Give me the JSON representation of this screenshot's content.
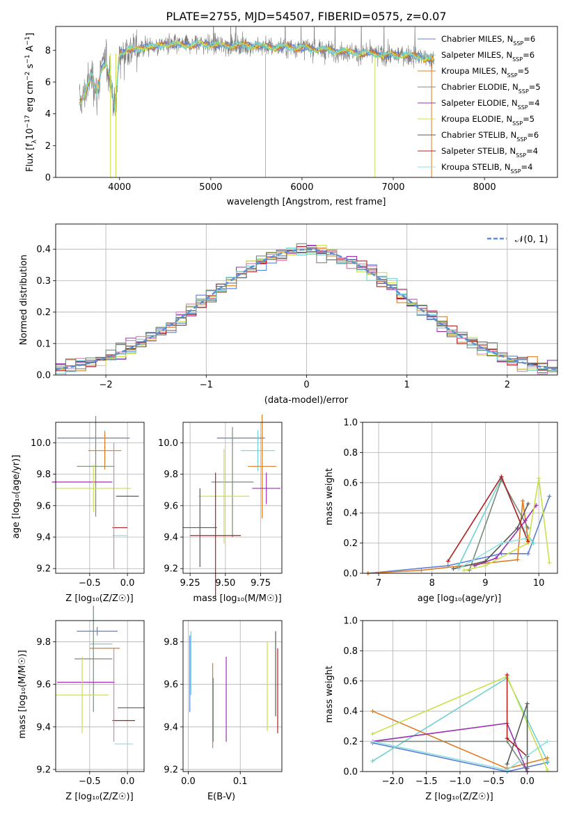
{
  "figure": {
    "title": "PLATE=2755, MJD=54507, FIBERID=0575, z=0.07"
  },
  "colors": {
    "series": [
      "#5a7fd6",
      "#6fd0d0",
      "#e07b22",
      "#7a8a7a",
      "#9a2fb0",
      "#c9e04a",
      "#5a5a5a",
      "#b01f1f",
      "#8fe0e0"
    ],
    "pink": "#e37eb3",
    "green": "#7bd96b",
    "grey": "#888888"
  },
  "chart_data": [
    {
      "id": "spectrum",
      "type": "line",
      "xlabel": "wavelength [Angstrom, rest frame]",
      "ylabel": "Flux [f$_\\lambda$10$^{-17}$ erg cm$^{-2}$ s$^{-1}$ A$^{-1}$]",
      "ylabel_parts": [
        "Flux [f",
        "λ",
        "10",
        "−17",
        " erg cm",
        "−2",
        " s",
        "−1",
        " A",
        "−1",
        "]"
      ],
      "xlim": [
        3300,
        8800
      ],
      "ylim": [
        0,
        9.5
      ],
      "xticks": [
        4000,
        5000,
        6000,
        7000,
        8000
      ],
      "yticks": [
        0,
        2,
        4,
        6,
        8
      ],
      "continuum": {
        "x": [
          3560,
          3600,
          3650,
          3700,
          3750,
          3800,
          3850,
          3900,
          3950,
          4000,
          4100,
          4200,
          4300,
          4400,
          4500,
          4700,
          4900,
          5100,
          5300,
          5500,
          5700,
          5900,
          6100,
          6300,
          6500,
          6700,
          6900,
          7100,
          7300,
          7500,
          7700,
          7900,
          8100,
          8300,
          8500,
          8700
        ],
        "y": [
          4.7,
          5.0,
          5.8,
          6.5,
          5.2,
          6.8,
          7.3,
          6.2,
          4.2,
          7.8,
          8.1,
          8.0,
          8.3,
          8.2,
          8.4,
          8.3,
          8.4,
          8.3,
          8.3,
          8.3,
          8.2,
          8.2,
          8.1,
          8.0,
          7.9,
          7.8,
          7.7,
          7.7,
          7.6,
          7.2,
          7.3,
          7.1,
          7.0,
          6.8,
          6.5,
          6.2
        ]
      },
      "legend": [
        {
          "name": "Chabrier MILES, N",
          "sub": "SSP",
          "tail": "=6"
        },
        {
          "name": "Salpeter MILES, N",
          "sub": "SSP",
          "tail": "=6"
        },
        {
          "name": "Kroupa MILES, N",
          "sub": "SSP",
          "tail": "=5"
        },
        {
          "name": "Chabrier ELODIE, N",
          "sub": "SSP",
          "tail": "=5"
        },
        {
          "name": "Salpeter ELODIE, N",
          "sub": "SSP",
          "tail": "=4"
        },
        {
          "name": "Kroupa ELODIE, N",
          "sub": "SSP",
          "tail": "=5"
        },
        {
          "name": "Chabrier STELIB, N",
          "sub": "SSP",
          "tail": "=6"
        },
        {
          "name": "Salpeter STELIB, N",
          "sub": "SSP",
          "tail": "=4"
        },
        {
          "name": "Kroupa STELIB, N",
          "sub": "SSP",
          "tail": "=4"
        }
      ]
    },
    {
      "id": "residual-histogram",
      "type": "bar",
      "xlabel": "(data-model)/error",
      "ylabel": "Normed distribution",
      "xlim": [
        -2.5,
        2.5
      ],
      "ylim": [
        0,
        0.48
      ],
      "xticks": [
        -2,
        -1,
        0,
        1,
        2
      ],
      "xtick_labels": [
        "−2",
        "−1",
        "0",
        "1",
        "2"
      ],
      "yticks": [
        0.0,
        0.1,
        0.2,
        0.3,
        0.4
      ],
      "bin_width": 0.1,
      "legend": [
        {
          "name": "𝒩(0, 1)"
        }
      ]
    },
    {
      "id": "age-vs-Z",
      "type": "scatter",
      "xlabel": "Z [log₁₀(Z/Z☉)]",
      "ylabel": "age  [log₁₀(age/yr)]",
      "xlim": [
        -0.95,
        0.22
      ],
      "ylim": [
        9.17,
        10.13
      ],
      "xticks": [
        -0.5,
        0.0
      ],
      "xtick_labels": [
        "−0.5",
        "0.0"
      ],
      "yticks": [
        9.2,
        9.4,
        9.6,
        9.8,
        10.0
      ],
      "points": [
        {
          "x": -0.45,
          "y": 10.03,
          "xerr": 0.48,
          "yerr": 0.0
        },
        {
          "x": -0.3,
          "y": 9.98,
          "xerr": 0.0,
          "yerr": 0.1
        },
        {
          "x": -0.3,
          "y": 9.95,
          "xerr": 0.22,
          "yerr": 0.12
        },
        {
          "x": -0.42,
          "y": 9.85,
          "xerr": 0.25,
          "yerr": 0.32
        },
        {
          "x": -0.6,
          "y": 9.75,
          "xerr": 0.4,
          "yerr": 0.0
        },
        {
          "x": -0.45,
          "y": 9.71,
          "xerr": 0.5,
          "yerr": 0.15
        },
        {
          "x": 0.0,
          "y": 9.66,
          "xerr": 0.15,
          "yerr": 0.0
        },
        {
          "x": -0.1,
          "y": 9.46,
          "xerr": 0.1,
          "yerr": 0.0
        },
        {
          "x": -0.1,
          "y": 9.41,
          "xerr": 0.1,
          "yerr": 0.0
        },
        {
          "x": -0.18,
          "y": 9.6,
          "xerr": 0.0,
          "yerr": 0.4
        }
      ]
    },
    {
      "id": "age-vs-mass",
      "type": "scatter",
      "xlabel": "mass [log₁₀(M/M☉)]",
      "ylabel": "",
      "xlim": [
        9.2,
        9.9
      ],
      "ylim": [
        9.17,
        10.13
      ],
      "xticks": [
        9.25,
        9.5,
        9.75
      ],
      "yticks": [
        9.2,
        9.4,
        9.6,
        9.8,
        10.0
      ],
      "points": [
        {
          "x": 9.61,
          "y": 10.03,
          "xerr": 0.17,
          "yerr": 0.0
        },
        {
          "x": 9.73,
          "y": 9.95,
          "xerr": 0.12,
          "yerr": 0.13
        },
        {
          "x": 9.76,
          "y": 9.85,
          "xerr": 0.1,
          "yerr": 0.33
        },
        {
          "x": 9.55,
          "y": 9.75,
          "xerr": 0.15,
          "yerr": 0.35
        },
        {
          "x": 9.79,
          "y": 9.71,
          "xerr": 0.1,
          "yerr": 0.1
        },
        {
          "x": 9.49,
          "y": 9.66,
          "xerr": 0.18,
          "yerr": 0.3
        },
        {
          "x": 9.32,
          "y": 9.46,
          "xerr": 0.12,
          "yerr": 0.25
        },
        {
          "x": 9.43,
          "y": 9.41,
          "xerr": 0.18,
          "yerr": 0.4
        }
      ]
    },
    {
      "id": "mass-weight-vs-age",
      "type": "line",
      "xlabel": "age  [log₁₀(age/yr)]",
      "ylabel": "mass weight",
      "xlim": [
        6.7,
        10.35
      ],
      "ylim": [
        0,
        1.0
      ],
      "xticks": [
        7,
        8,
        9,
        10
      ],
      "yticks": [
        0.0,
        0.2,
        0.4,
        0.6,
        0.8,
        1.0
      ],
      "series": [
        {
          "x": [
            6.8,
            8.3,
            9.3,
            9.8,
            10.2
          ],
          "y": [
            0.0,
            0.05,
            0.13,
            0.13,
            0.51
          ]
        },
        {
          "x": [
            8.5,
            9.3,
            9.7,
            9.9
          ],
          "y": [
            0.05,
            0.63,
            0.3,
            0.2
          ]
        },
        {
          "x": [
            6.8,
            7.8,
            9.6,
            9.7,
            9.8
          ],
          "y": [
            0.0,
            0.02,
            0.09,
            0.48,
            0.22
          ]
        },
        {
          "x": [
            8.7,
            9.3,
            9.8
          ],
          "y": [
            0.02,
            0.62,
            0.3
          ]
        },
        {
          "x": [
            8.8,
            9.2,
            9.75,
            9.95
          ],
          "y": [
            0.05,
            0.1,
            0.35,
            0.45
          ]
        },
        {
          "x": [
            8.6,
            9.0,
            9.8,
            10.0,
            10.2
          ],
          "y": [
            0.02,
            0.05,
            0.2,
            0.63,
            0.07
          ]
        },
        {
          "x": [
            8.4,
            9.0,
            9.6,
            9.8
          ],
          "y": [
            0.03,
            0.08,
            0.3,
            0.46
          ]
        },
        {
          "x": [
            8.3,
            9.3,
            9.8
          ],
          "y": [
            0.08,
            0.64,
            0.21
          ]
        },
        {
          "x": [
            8.5,
            9.3,
            9.75
          ],
          "y": [
            0.03,
            0.2,
            0.23
          ]
        }
      ]
    },
    {
      "id": "mass-vs-Z",
      "type": "scatter",
      "xlabel": "Z [log₁₀(Z/Z☉)]",
      "ylabel": "mass [log₁₀(M/M☉)]",
      "xlim": [
        -0.95,
        0.22
      ],
      "ylim": [
        9.19,
        9.9
      ],
      "xticks": [
        -0.5,
        0.0
      ],
      "xtick_labels": [
        "−0.5",
        "0.0"
      ],
      "yticks": [
        9.2,
        9.4,
        9.6,
        9.8
      ],
      "points": [
        {
          "x": -0.4,
          "y": 9.85,
          "xerr": 0.27,
          "yerr": 0.02
        },
        {
          "x": -0.35,
          "y": 9.79,
          "xerr": 0.15,
          "yerr": 0.0
        },
        {
          "x": -0.3,
          "y": 9.77,
          "xerr": 0.2,
          "yerr": 0.0
        },
        {
          "x": -0.45,
          "y": 9.72,
          "xerr": 0.25,
          "yerr": 0.25
        },
        {
          "x": -0.55,
          "y": 9.61,
          "xerr": 0.38,
          "yerr": 0.0
        },
        {
          "x": -0.6,
          "y": 9.55,
          "xerr": 0.35,
          "yerr": 0.18
        },
        {
          "x": 0.05,
          "y": 9.49,
          "xerr": 0.18,
          "yerr": 0.0
        },
        {
          "x": -0.05,
          "y": 9.43,
          "xerr": 0.15,
          "yerr": 0.0
        },
        {
          "x": -0.05,
          "y": 9.32,
          "xerr": 0.12,
          "yerr": 0.0
        },
        {
          "x": -0.18,
          "y": 9.55,
          "xerr": 0.0,
          "yerr": 0.22
        }
      ]
    },
    {
      "id": "mass-vs-EBV",
      "type": "scatter",
      "xlabel": "E(B-V)",
      "ylabel": "",
      "xlim": [
        -0.01,
        0.18
      ],
      "ylim": [
        9.19,
        9.9
      ],
      "xticks": [
        0.0,
        0.1
      ],
      "yticks": [
        9.2,
        9.4,
        9.6,
        9.8
      ],
      "points": [
        {
          "x": 0.003,
          "y": 9.65,
          "yerr": 0.18
        },
        {
          "x": 0.005,
          "y": 9.7,
          "yerr": 0.15
        },
        {
          "x": 0.047,
          "y": 9.5,
          "yerr": 0.2
        },
        {
          "x": 0.048,
          "y": 9.48,
          "yerr": 0.15
        },
        {
          "x": 0.073,
          "y": 9.53,
          "yerr": 0.2
        },
        {
          "x": 0.152,
          "y": 9.59,
          "yerr": 0.21
        },
        {
          "x": 0.168,
          "y": 9.65,
          "yerr": 0.2
        },
        {
          "x": 0.172,
          "y": 9.57,
          "yerr": 0.2
        }
      ]
    },
    {
      "id": "mass-weight-vs-Z",
      "type": "line",
      "xlabel": "Z [log₁₀(Z/Z☉)]",
      "ylabel": "mass weight",
      "xlim": [
        -2.45,
        0.45
      ],
      "ylim": [
        0,
        1.0
      ],
      "xticks": [
        -2.0,
        -1.5,
        -1.0,
        -0.5,
        0.0
      ],
      "xtick_labels": [
        "−2.0",
        "−1.5",
        "−1.0",
        "−0.5",
        "0.0"
      ],
      "yticks": [
        0.0,
        0.2,
        0.4,
        0.6,
        0.8,
        1.0
      ],
      "series": [
        {
          "x": [
            -2.3,
            -0.3,
            0.3
          ],
          "y": [
            0.19,
            0.0,
            0.06
          ]
        },
        {
          "x": [
            -2.3,
            -0.3,
            0.3
          ],
          "y": [
            0.07,
            0.62,
            0.07
          ]
        },
        {
          "x": [
            -2.3,
            -0.3,
            0.3
          ],
          "y": [
            0.4,
            0.02,
            0.09
          ]
        },
        {
          "x": [
            -2.3,
            -0.3,
            0.0
          ],
          "y": [
            0.2,
            0.2,
            0.0
          ]
        },
        {
          "x": [
            -2.3,
            -0.3,
            0.0
          ],
          "y": [
            0.2,
            0.32,
            0.0
          ]
        },
        {
          "x": [
            -2.3,
            -0.3,
            0.3
          ],
          "y": [
            0.25,
            0.63,
            0.01
          ]
        },
        {
          "x": [
            -0.3,
            0.0,
            0.0
          ],
          "y": [
            0.05,
            0.45,
            0.02
          ]
        },
        {
          "x": [
            -0.3,
            -0.3,
            0.0
          ],
          "y": [
            0.64,
            0.22,
            0.1
          ]
        },
        {
          "x": [
            -2.3,
            -0.3,
            0.3
          ],
          "y": [
            0.2,
            0.01,
            0.2
          ]
        }
      ]
    }
  ]
}
